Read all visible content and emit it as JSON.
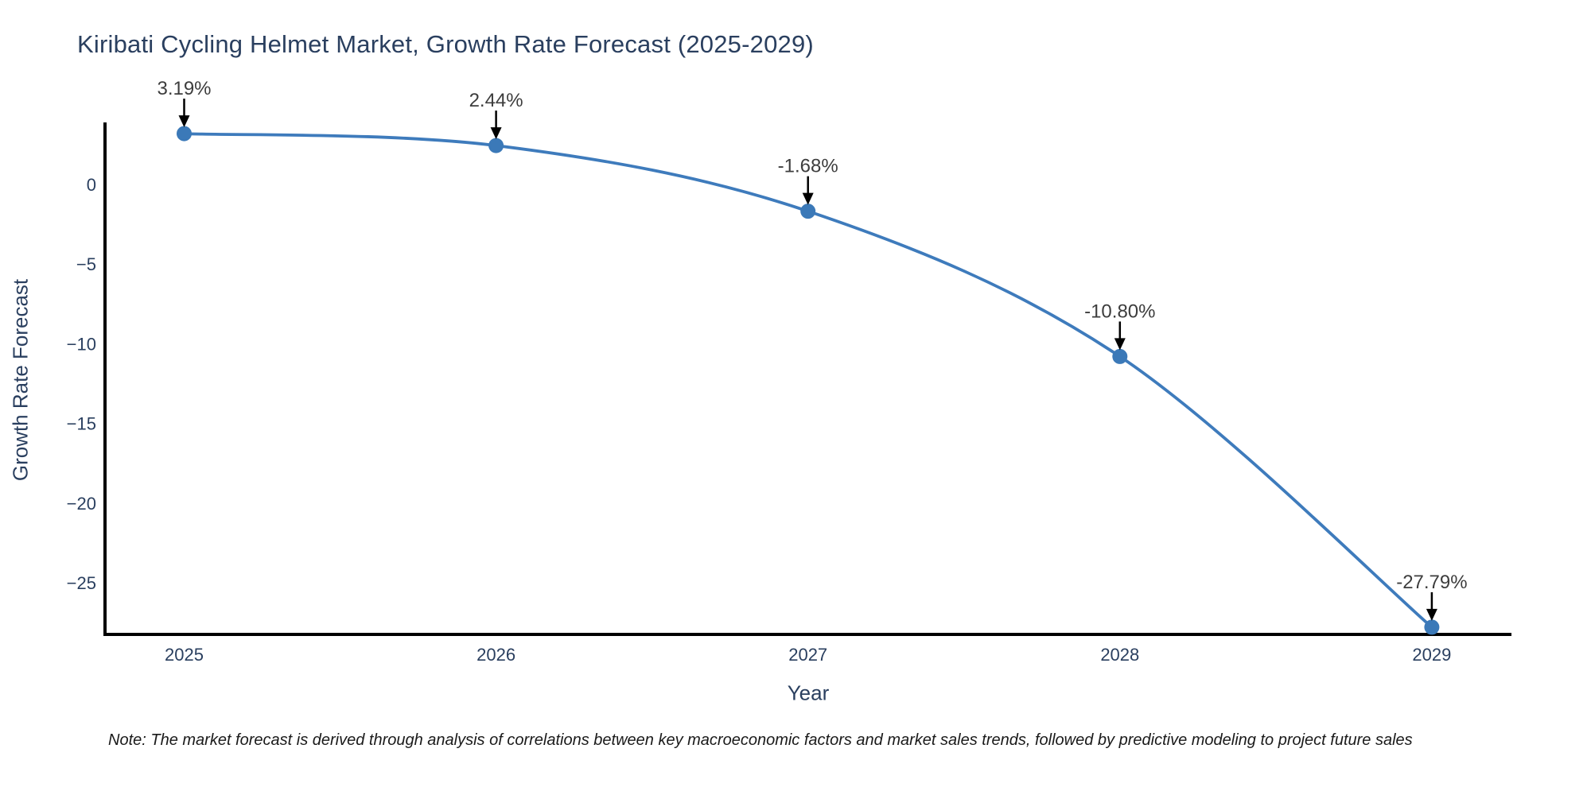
{
  "chart_data": {
    "type": "line",
    "title": "Kiribati Cycling Helmet Market, Growth Rate Forecast (2025-2029)",
    "xlabel": "Year",
    "ylabel": "Growth Rate Forecast",
    "x": [
      2025,
      2026,
      2027,
      2028,
      2029
    ],
    "series": [
      {
        "name": "Growth Rate Forecast",
        "values": [
          3.19,
          2.44,
          -1.68,
          -10.8,
          -27.79
        ],
        "point_labels": [
          "3.19%",
          "2.44%",
          "-1.68%",
          "-10.80%",
          "-27.79%"
        ]
      }
    ],
    "line_shape": "spline",
    "markers": true,
    "xtick_labels": [
      "2025",
      "2026",
      "2027",
      "2028",
      "2029"
    ],
    "ytick_values": [
      0,
      -5,
      -10,
      -15,
      -20,
      -25
    ],
    "ytick_labels": [
      "0",
      "−5",
      "−10",
      "−15",
      "−20",
      "−25"
    ],
    "xlim": [
      2024.75,
      2029.26
    ],
    "ylim": [
      -28.3,
      3.85
    ],
    "grid": false,
    "legend_position": "none",
    "annotations_have_arrows": true,
    "colors": {
      "line": "#3E7BBC",
      "marker": "#3B79B8",
      "title": "#2a3f5f",
      "axis_line": "#000000",
      "tick_label": "#2a3f5f",
      "annotation_text": "#3d3d3d",
      "arrow": "#000000",
      "note_text": "#1a1a1a",
      "background": "#ffffff"
    }
  },
  "note": "Note: The market forecast is derived through analysis of correlations between key macroeconomic factors and market sales trends, followed by predictive modeling to project future sales"
}
